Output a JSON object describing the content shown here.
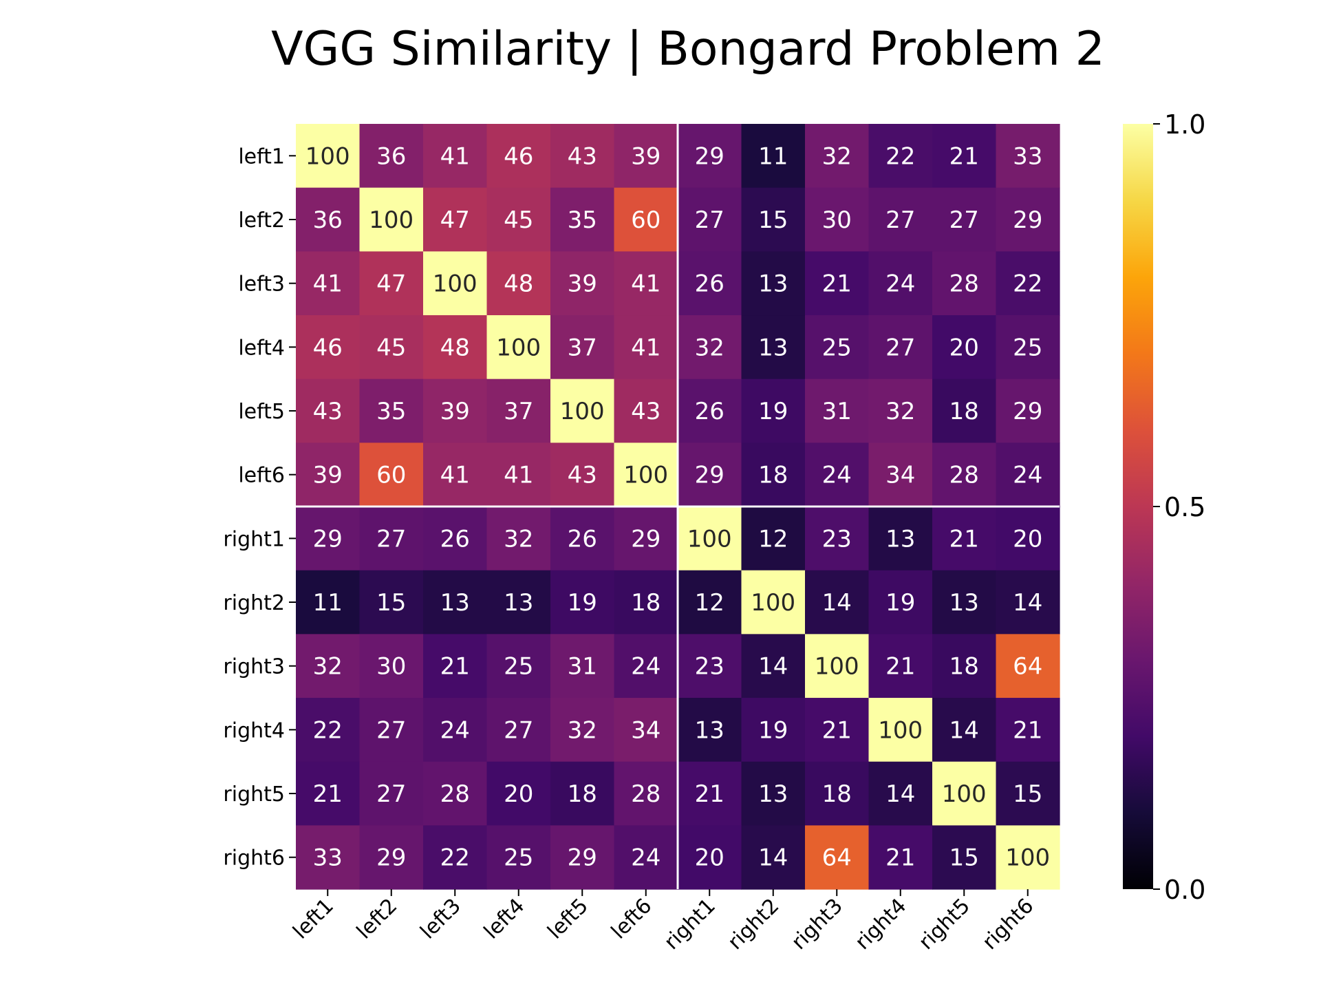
{
  "chart_data": {
    "type": "heatmap",
    "title": "VGG Similarity | Bongard Problem 2",
    "xlabel": "",
    "ylabel": "",
    "rows": [
      "left1",
      "left2",
      "left3",
      "left4",
      "left5",
      "left6",
      "right1",
      "right2",
      "right3",
      "right4",
      "right5",
      "right6"
    ],
    "columns": [
      "left1",
      "left2",
      "left3",
      "left4",
      "left5",
      "left6",
      "right1",
      "right2",
      "right3",
      "right4",
      "right5",
      "right6"
    ],
    "values": [
      [
        100,
        36,
        41,
        46,
        43,
        39,
        29,
        11,
        32,
        22,
        21,
        33
      ],
      [
        36,
        100,
        47,
        45,
        35,
        60,
        27,
        15,
        30,
        27,
        27,
        29
      ],
      [
        41,
        47,
        100,
        48,
        39,
        41,
        26,
        13,
        21,
        24,
        28,
        22
      ],
      [
        46,
        45,
        48,
        100,
        37,
        41,
        32,
        13,
        25,
        27,
        20,
        25
      ],
      [
        43,
        35,
        39,
        37,
        100,
        43,
        26,
        19,
        31,
        32,
        18,
        29
      ],
      [
        39,
        60,
        41,
        41,
        43,
        100,
        29,
        18,
        24,
        34,
        28,
        24
      ],
      [
        29,
        27,
        26,
        32,
        26,
        29,
        100,
        12,
        23,
        13,
        21,
        20
      ],
      [
        11,
        15,
        13,
        13,
        19,
        18,
        12,
        100,
        14,
        19,
        13,
        14
      ],
      [
        32,
        30,
        21,
        25,
        31,
        24,
        23,
        14,
        100,
        21,
        18,
        64
      ],
      [
        22,
        27,
        24,
        27,
        32,
        34,
        13,
        19,
        21,
        100,
        14,
        21
      ],
      [
        21,
        27,
        28,
        20,
        18,
        28,
        21,
        13,
        18,
        14,
        100,
        15
      ],
      [
        33,
        29,
        22,
        25,
        29,
        24,
        20,
        14,
        64,
        21,
        15,
        100
      ]
    ],
    "colormap": "inferno",
    "colorbar": {
      "min": 0.0,
      "max": 1.0,
      "ticks": [
        "0.0",
        "0.5",
        "1.0"
      ]
    },
    "divider_after_index": 6,
    "divider_color": "#ffffff"
  }
}
